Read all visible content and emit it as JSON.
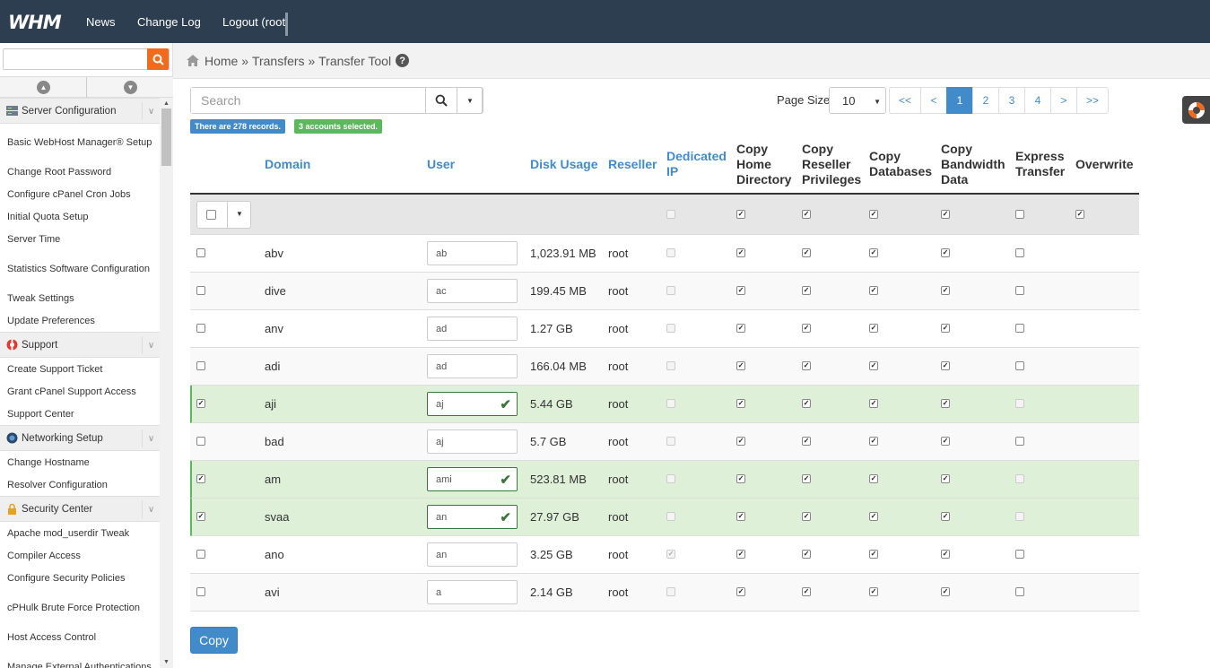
{
  "topbar": {
    "logo": "WHM",
    "nav": [
      "News",
      "Change Log",
      "Logout (root"
    ]
  },
  "sidebar": {
    "search_placeholder": "",
    "sections": [
      {
        "title": "Server Configuration",
        "icon": "server-icon",
        "items": [
          "Basic WebHost Manager® Setup",
          "Change Root Password",
          "Configure cPanel Cron Jobs",
          "Initial Quota Setup",
          "Server Time",
          "Statistics Software Configuration",
          "Tweak Settings",
          "Update Preferences"
        ]
      },
      {
        "title": "Support",
        "icon": "lifebuoy-icon",
        "items": [
          "Create Support Ticket",
          "Grant cPanel Support Access",
          "Support Center"
        ]
      },
      {
        "title": "Networking Setup",
        "icon": "globe-icon",
        "items": [
          "Change Hostname",
          "Resolver Configuration"
        ]
      },
      {
        "title": "Security Center",
        "icon": "lock-icon",
        "items": [
          "Apache mod_userdir Tweak",
          "Compiler Access",
          "Configure Security Policies",
          "cPHulk Brute Force Protection",
          "Host Access Control",
          "Manage External Authentications"
        ]
      }
    ]
  },
  "breadcrumb": {
    "home": "Home",
    "sep": "»",
    "transfers": "Transfers",
    "current": "Transfer Tool"
  },
  "search": {
    "placeholder": "Search"
  },
  "badges": {
    "records": "There are 278 records.",
    "selected": "3 accounts selected."
  },
  "pager": {
    "size_label": "Page Size",
    "size_value": "10",
    "buttons": [
      "<<",
      "<",
      "1",
      "2",
      "3",
      "4",
      ">",
      ">>"
    ],
    "active": "1"
  },
  "columns": {
    "domain": "Domain",
    "user": "User",
    "disk": "Disk Usage",
    "reseller": "Reseller",
    "dedicated_ip": [
      "Dedicated",
      "IP"
    ],
    "copy_home": [
      "Copy",
      "Home",
      "Directory"
    ],
    "copy_reseller": [
      "Copy",
      "Reseller",
      "Privileges"
    ],
    "copy_db": [
      "Copy",
      "Databases"
    ],
    "copy_bw": [
      "Copy",
      "Bandwidth",
      "Data"
    ],
    "express": [
      "Express",
      "Transfer"
    ],
    "overwrite": "Overwrite"
  },
  "header_checks": {
    "dedicated_ip": false,
    "copy_home": true,
    "copy_reseller": true,
    "copy_db": true,
    "copy_bw": true,
    "express": false,
    "overwrite": true
  },
  "rows": [
    {
      "selected": false,
      "domain": "abv",
      "user": "ab",
      "disk": "1,023.91 MB",
      "reseller": "root",
      "dedicated_ip": false,
      "dip_enabled": false
    },
    {
      "selected": false,
      "domain": "dive",
      "user": "ac",
      "disk": "199.45 MB",
      "reseller": "root",
      "dedicated_ip": false,
      "dip_enabled": false
    },
    {
      "selected": false,
      "domain": "anv",
      "user": "ad",
      "disk": "1.27 GB",
      "reseller": "root",
      "dedicated_ip": false,
      "dip_enabled": false
    },
    {
      "selected": false,
      "domain": "adi",
      "user": "ad",
      "disk": "166.04 MB",
      "reseller": "root",
      "dedicated_ip": false,
      "dip_enabled": false
    },
    {
      "selected": true,
      "domain": "aji",
      "user": "aj",
      "disk": "5.44 GB",
      "reseller": "root",
      "dedicated_ip": false,
      "dip_enabled": false
    },
    {
      "selected": false,
      "domain": "bad",
      "user": "aj",
      "disk": "5.7 GB",
      "reseller": "root",
      "dedicated_ip": false,
      "dip_enabled": false
    },
    {
      "selected": true,
      "domain": "am",
      "user": "ami",
      "disk": "523.81 MB",
      "reseller": "root",
      "dedicated_ip": false,
      "dip_enabled": false
    },
    {
      "selected": true,
      "domain": "svaa",
      "user": "an",
      "disk": "27.97 GB",
      "reseller": "root",
      "dedicated_ip": false,
      "dip_enabled": false
    },
    {
      "selected": false,
      "domain": "ano",
      "user": "an",
      "disk": "3.25 GB",
      "reseller": "root",
      "dedicated_ip": true,
      "dip_enabled": false
    },
    {
      "selected": false,
      "domain": "avi",
      "user": "a",
      "disk": "2.14 GB",
      "reseller": "root",
      "dedicated_ip": false,
      "dip_enabled": false
    }
  ],
  "copy_button": "Copy",
  "colors": {
    "topbar": "#2d3e50",
    "accent": "#428bca",
    "success": "#5cb85c",
    "search_orange": "#f26a1b"
  }
}
